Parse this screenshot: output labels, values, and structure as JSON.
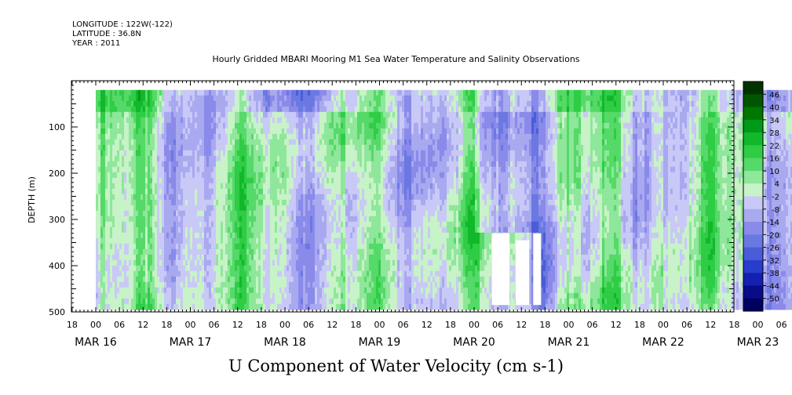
{
  "header": {
    "longitude": "LONGITUDE : 122W(-122)",
    "latitude": "LATITUDE : 36.8N",
    "year": "YEAR : 2011",
    "title": "Hourly Gridded MBARI Mooring M1 Sea Water Temperature and Salinity Observations"
  },
  "chart_data": {
    "type": "heatmap",
    "title": "Hourly Gridded MBARI Mooring M1 Sea Water Temperature and Salinity Observations",
    "subtitle": "U Component of Water Velocity (cm s-1)",
    "ylabel": "DEPTH (m)",
    "y_reversed": true,
    "ylim": [
      500,
      0
    ],
    "y_ticks": [
      100,
      200,
      300,
      400,
      500
    ],
    "x_hour_ticks": [
      "18",
      "00",
      "06",
      "12",
      "18",
      "00",
      "06",
      "12",
      "18",
      "00",
      "06",
      "12",
      "18",
      "00",
      "06",
      "12",
      "18",
      "00",
      "06",
      "12",
      "18",
      "00",
      "06",
      "12",
      "18",
      "00",
      "06",
      "12",
      "18",
      "00",
      "06",
      "12",
      "18"
    ],
    "x_day_labels": [
      {
        "label": "MAR 16",
        "day": 0
      },
      {
        "label": "MAR 17",
        "day": 1
      },
      {
        "label": "MAR 18",
        "day": 2
      },
      {
        "label": "MAR 19",
        "day": 3
      },
      {
        "label": "MAR 20",
        "day": 4
      },
      {
        "label": "MAR 21",
        "day": 5
      },
      {
        "label": "MAR 22",
        "day": 6
      },
      {
        "label": "MAR 23",
        "day": 7
      }
    ],
    "colorbar": {
      "labels": [
        "46",
        "40",
        "34",
        "28",
        "22",
        "16",
        "10",
        "4",
        "-2",
        "-8",
        "-14",
        "-20",
        "-26",
        "-32",
        "-38",
        "-44",
        "-50"
      ],
      "levels": [
        52,
        46,
        40,
        34,
        28,
        22,
        16,
        10,
        4,
        -2,
        -8,
        -14,
        -20,
        -26,
        -32,
        -38,
        -44,
        -50
      ],
      "colors": [
        "#003300",
        "#005500",
        "#007700",
        "#009918",
        "#11b82a",
        "#2fcc45",
        "#55d968",
        "#8ee79a",
        "#c8f2c8",
        "#c9c9f7",
        "#a9a9f0",
        "#8a8aea",
        "#6a78e2",
        "#4a5cd8",
        "#2a3ccc",
        "#1420b0",
        "#080c88",
        "#000060"
      ]
    },
    "depth_range_m": [
      20,
      485
    ],
    "time_range_hours_from_mar16_00": [
      0,
      194
    ]
  }
}
